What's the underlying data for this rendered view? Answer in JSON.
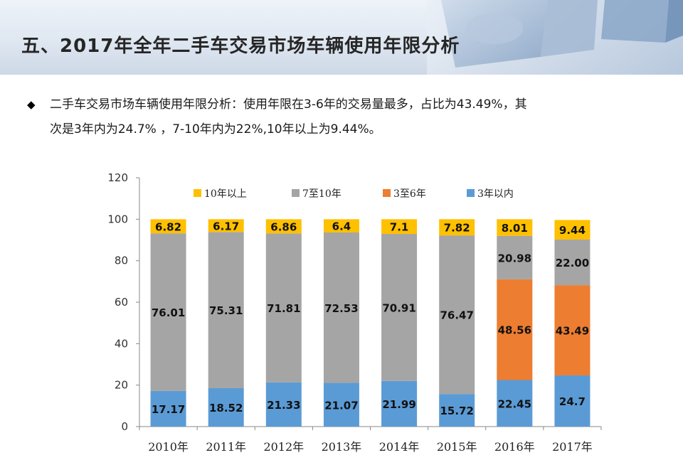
{
  "page": {
    "title": "五、2017年全年二手车交易市场车辆使用年限分析",
    "bullet_icon": "diamond-bullet-icon",
    "desc_line1": "二手车交易市场车辆使用年限分析：使用年限在3-6年的交易量最多，占比为43.49%，其",
    "desc_line2": "次是3年内为24.7% ，7-10年内为22%,10年以上为9.44%。"
  },
  "colors": {
    "y0_3": "#5b9bd5",
    "y3_6": "#ed7d31",
    "y7_10": "#a5a5a5",
    "y10p": "#ffc000"
  },
  "chart_data": {
    "type": "bar",
    "stacked": true,
    "categories": [
      "2010年",
      "2011年",
      "2012年",
      "2013年",
      "2014年",
      "2015年",
      "2016年",
      "2017年"
    ],
    "ylim": [
      0,
      120
    ],
    "yticks": [
      0,
      20,
      40,
      60,
      80,
      100,
      120
    ],
    "legend_position": "top",
    "legend_order": [
      "10年以上",
      "7至10年",
      "3至6年",
      "3年以内"
    ],
    "series": [
      {
        "name": "3年以内",
        "color_key": "y0_3",
        "values": [
          17.17,
          18.52,
          21.33,
          21.07,
          21.99,
          15.72,
          22.45,
          24.7
        ],
        "labels": [
          "17.17",
          "18.52",
          "21.33",
          "21.07",
          "21.99",
          "15.72",
          "22.45",
          "24.7"
        ]
      },
      {
        "name": "3至6年",
        "color_key": "y3_6",
        "values": [
          0,
          0,
          0,
          0,
          0,
          0,
          48.56,
          43.49
        ],
        "labels": [
          "",
          "",
          "",
          "",
          "",
          "",
          "48.56",
          "43.49"
        ]
      },
      {
        "name": "7至10年",
        "color_key": "y7_10",
        "values": [
          76.01,
          75.31,
          71.81,
          72.53,
          70.91,
          76.47,
          20.98,
          22.0
        ],
        "labels": [
          "76.01",
          "75.31",
          "71.81",
          "72.53",
          "70.91",
          "76.47",
          "20.98",
          "22.00"
        ]
      },
      {
        "name": "10年以上",
        "color_key": "y10p",
        "values": [
          6.82,
          6.17,
          6.86,
          6.4,
          7.1,
          7.82,
          8.01,
          9.44
        ],
        "labels": [
          "6.82",
          "6.17",
          "6.86",
          "6.4",
          "7.1",
          "7.82",
          "8.01",
          "9.44"
        ]
      }
    ]
  }
}
